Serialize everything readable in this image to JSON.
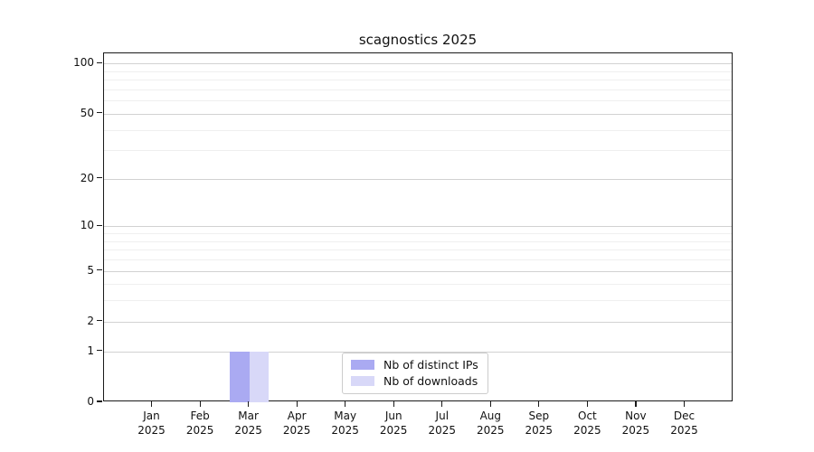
{
  "chart_data": {
    "type": "bar",
    "title": "scagnostics 2025",
    "categories": [
      "Jan 2025",
      "Feb 2025",
      "Mar 2025",
      "Apr 2025",
      "May 2025",
      "Jun 2025",
      "Jul 2025",
      "Aug 2025",
      "Sep 2025",
      "Oct 2025",
      "Nov 2025",
      "Dec 2025"
    ],
    "series": [
      {
        "name": "Nb of distinct IPs",
        "color": "#aaaaf2",
        "values": [
          0,
          0,
          1,
          0,
          0,
          0,
          0,
          0,
          0,
          0,
          0,
          0
        ]
      },
      {
        "name": "Nb of downloads",
        "color": "#d8d8f8",
        "values": [
          0,
          0,
          1,
          0,
          0,
          0,
          0,
          0,
          0,
          0,
          0,
          0
        ]
      }
    ],
    "xlabel": "",
    "ylabel": "",
    "yscale": "log1p",
    "ylim": [
      0,
      115
    ],
    "yticks": [
      0,
      1,
      2,
      5,
      10,
      20,
      50,
      100
    ],
    "minor_gridlines": [
      3,
      4,
      6,
      7,
      8,
      9,
      30,
      40,
      60,
      70,
      80,
      90
    ],
    "grid": "horizontal",
    "legend_position": "lower center inside"
  },
  "colors": {
    "background": "#ffffff",
    "axis": "#1a1a1a",
    "major_grid": "#d2d2d2",
    "minor_grid": "#efefef",
    "text": "#111111"
  }
}
